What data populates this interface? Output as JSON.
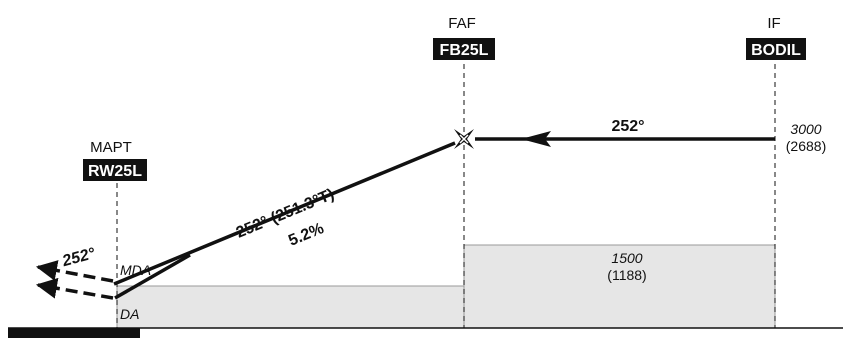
{
  "fixes": {
    "mapt": {
      "role": "MAPT",
      "name": "RW25L"
    },
    "faf": {
      "role": "FAF",
      "name": "FB25L"
    },
    "if": {
      "role": "IF",
      "name": "BODIL"
    }
  },
  "if_altitude": {
    "altitude": "3000",
    "height": "(2688)"
  },
  "intermediate_segment": {
    "course": "252°"
  },
  "final_segment": {
    "course": "252° (251.3°T)",
    "gradient": "5.2%"
  },
  "missed_approach": {
    "course": "252°"
  },
  "minima_labels": {
    "mda": "MDA",
    "da": "DA"
  },
  "obstacle_clearance": {
    "altitude": "1500",
    "height": "(1188)"
  },
  "colors": {
    "ink": "#111111",
    "fix_box": "#111111",
    "fix_box_text": "#ffffff",
    "shading": "#e6e6e6",
    "shading_edge": "#999999"
  }
}
